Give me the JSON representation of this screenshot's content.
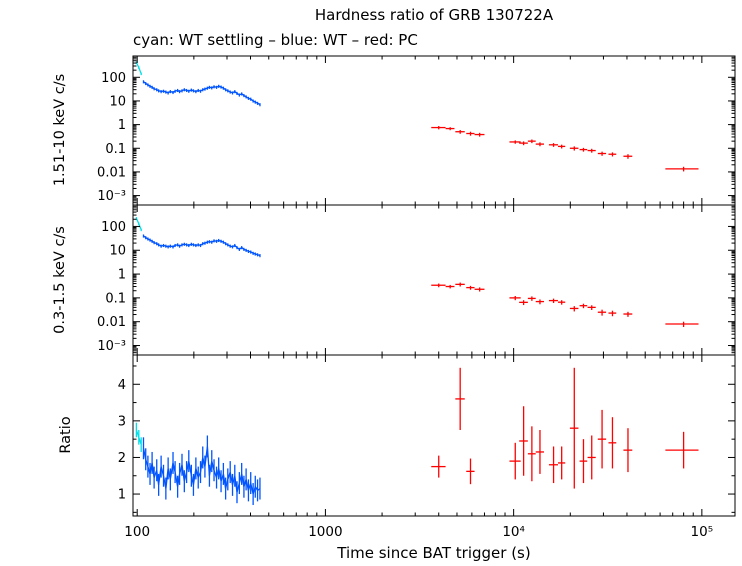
{
  "chart_data": {
    "type": "scatter",
    "title": "Hardness ratio of GRB 130722A",
    "subtitle": "cyan: WT settling – blue: WT – red: PC",
    "xlabel": "Time since BAT trigger (s)",
    "x_scale": "log",
    "x_range": [
      95,
      150000
    ],
    "x_ticks": {
      "values": [
        100,
        1000,
        10000,
        100000
      ],
      "labels": [
        "100",
        "1000",
        "10⁴",
        "10⁵"
      ]
    },
    "colors": {
      "wt_settling": "#00e0e8",
      "wt": "#0055ff",
      "pc": "#ff0000",
      "axis": "#000000"
    },
    "legend": {
      "wt_settling": "WT settling",
      "wt": "WT",
      "pc": "PC"
    },
    "panels": [
      {
        "name": "hard-band",
        "ylabel": "1.51-10 keV c/s",
        "y_scale": "log",
        "y_range": [
          0.0004,
          794
        ],
        "y_ticks": {
          "values": [
            100,
            10,
            1,
            0.1,
            0.01,
            0.001
          ],
          "labels": [
            "100",
            "10",
            "1",
            "0.1",
            "0.01",
            "10⁻³"
          ]
        },
        "series": [
          {
            "name": "wt-settling",
            "color": "wt_settling",
            "style": "line",
            "yerr_frac": 0.12,
            "x": [
              99,
              102,
              105
            ],
            "y": [
              420,
              260,
              140
            ]
          },
          {
            "name": "wt",
            "color": "wt",
            "style": "line",
            "yerr_frac": 0.15,
            "x": [
              108,
              111,
              114,
              117,
              120,
              123,
              127,
              130,
              134,
              138,
              142,
              146,
              150,
              155,
              159,
              164,
              168,
              173,
              178,
              183,
              188,
              194,
              199,
              205,
              211,
              217,
              223,
              229,
              236,
              242,
              249,
              256,
              264,
              271,
              279,
              287,
              295,
              303,
              312,
              321,
              330,
              339,
              349,
              359,
              369,
              379,
              390,
              401,
              413,
              424,
              436,
              449
            ],
            "y": [
              65,
              55,
              48,
              42,
              38,
              33,
              30,
              27,
              25,
              26,
              24,
              22,
              25,
              23,
              26,
              28,
              25,
              27,
              30,
              28,
              26,
              29,
              27,
              25,
              28,
              26,
              30,
              32,
              35,
              38,
              36,
              40,
              38,
              42,
              39,
              35,
              30,
              27,
              24,
              22,
              25,
              21,
              18,
              20,
              17,
              15,
              13,
              12,
              10,
              9,
              8,
              7
            ]
          },
          {
            "name": "pc",
            "color": "pc",
            "style": "cross",
            "points": [
              [
                4000,
                0.75,
                350,
                0.12
              ],
              [
                4600,
                0.68,
                250,
                0.1
              ],
              [
                5200,
                0.5,
                300,
                0.09
              ],
              [
                5900,
                0.42,
                300,
                0.08
              ],
              [
                6600,
                0.38,
                400,
                0.07
              ],
              [
                10200,
                0.185,
                700,
                0.03
              ],
              [
                11300,
                0.165,
                600,
                0.03
              ],
              [
                12500,
                0.2,
                600,
                0.035
              ],
              [
                13800,
                0.15,
                700,
                0.028
              ],
              [
                16300,
                0.14,
                900,
                0.025
              ],
              [
                18000,
                0.12,
                800,
                0.022
              ],
              [
                21000,
                0.1,
                1100,
                0.02
              ],
              [
                23500,
                0.088,
                1100,
                0.016
              ],
              [
                26000,
                0.08,
                1300,
                0.015
              ],
              [
                29500,
                0.06,
                1500,
                0.012
              ],
              [
                33500,
                0.056,
                1600,
                0.011
              ],
              [
                40500,
                0.046,
                2200,
                0.01
              ],
              [
                80000,
                0.0135,
                16000,
                0.003
              ]
            ]
          }
        ]
      },
      {
        "name": "soft-band",
        "ylabel": "0.3-1.5 keV c/s",
        "y_scale": "log",
        "y_range": [
          0.0004,
          794
        ],
        "y_ticks": {
          "values": [
            100,
            10,
            1,
            0.1,
            0.01,
            0.001
          ],
          "labels": [
            "100",
            "10",
            "1",
            "0.1",
            "0.01",
            "10⁻³"
          ]
        },
        "series": [
          {
            "name": "wt-settling",
            "color": "wt_settling",
            "style": "line",
            "yerr_frac": 0.12,
            "x": [
              99,
              102,
              105
            ],
            "y": [
              220,
              130,
              72
            ]
          },
          {
            "name": "wt",
            "color": "wt",
            "style": "line",
            "yerr_frac": 0.15,
            "x": [
              108,
              111,
              114,
              117,
              120,
              123,
              127,
              130,
              134,
              138,
              142,
              146,
              150,
              155,
              159,
              164,
              168,
              173,
              178,
              183,
              188,
              194,
              199,
              205,
              211,
              217,
              223,
              229,
              236,
              242,
              249,
              256,
              264,
              271,
              279,
              287,
              295,
              303,
              312,
              321,
              330,
              339,
              349,
              359,
              369,
              379,
              390,
              401,
              413,
              424,
              436,
              449
            ],
            "y": [
              40,
              34,
              30,
              27,
              24,
              21,
              19,
              17,
              15,
              16,
              15,
              14,
              15,
              14,
              16,
              17,
              15,
              17,
              18,
              17,
              16,
              18,
              17,
              16,
              17,
              16,
              19,
              20,
              22,
              23,
              22,
              25,
              24,
              26,
              24,
              22,
              19,
              17,
              15,
              14,
              16,
              13,
              11,
              13,
              11,
              10,
              9,
              8.5,
              7.5,
              7,
              6.5,
              6
            ]
          },
          {
            "name": "pc",
            "color": "pc",
            "style": "cross",
            "points": [
              [
                4000,
                0.34,
                350,
                0.06
              ],
              [
                4600,
                0.3,
                250,
                0.05
              ],
              [
                5200,
                0.37,
                300,
                0.07
              ],
              [
                5900,
                0.27,
                300,
                0.05
              ],
              [
                6600,
                0.23,
                400,
                0.045
              ],
              [
                10200,
                0.1,
                700,
                0.02
              ],
              [
                11300,
                0.065,
                600,
                0.015
              ],
              [
                12500,
                0.095,
                600,
                0.02
              ],
              [
                13800,
                0.07,
                700,
                0.016
              ],
              [
                16300,
                0.077,
                900,
                0.016
              ],
              [
                18000,
                0.066,
                800,
                0.014
              ],
              [
                21000,
                0.036,
                1100,
                0.009
              ],
              [
                23500,
                0.047,
                1100,
                0.01
              ],
              [
                26000,
                0.04,
                1300,
                0.009
              ],
              [
                29500,
                0.025,
                1500,
                0.007
              ],
              [
                33500,
                0.023,
                1600,
                0.006
              ],
              [
                40500,
                0.021,
                2200,
                0.005
              ],
              [
                80000,
                0.008,
                16000,
                0.002
              ]
            ]
          }
        ]
      },
      {
        "name": "ratio",
        "ylabel": "Ratio",
        "y_scale": "linear",
        "y_range": [
          0.4,
          4.8
        ],
        "y_ticks": {
          "values": [
            1,
            2,
            3,
            4
          ],
          "labels": [
            "1",
            "2",
            "3",
            "4"
          ]
        },
        "series": [
          {
            "name": "wt-settling",
            "color": "wt_settling",
            "style": "line",
            "yerr_abs": 0.2,
            "x": [
              99,
              102,
              105
            ],
            "y": [
              2.75,
              2.55,
              2.35
            ]
          },
          {
            "name": "wt",
            "color": "wt",
            "style": "line",
            "yerr_abs": 0.3,
            "x": [
              108,
              111,
              114,
              117,
              120,
              123,
              127,
              130,
              134,
              138,
              142,
              146,
              150,
              155,
              159,
              164,
              168,
              173,
              178,
              183,
              188,
              194,
              199,
              205,
              211,
              217,
              223,
              229,
              236,
              242,
              249,
              256,
              264,
              271,
              279,
              287,
              295,
              303,
              312,
              321,
              330,
              339,
              349,
              359,
              369,
              379,
              390,
              401,
              413,
              424,
              436,
              449
            ],
            "y": [
              2.25,
              1.95,
              1.75,
              1.55,
              1.85,
              1.45,
              1.65,
              1.25,
              1.75,
              1.5,
              1.15,
              1.7,
              1.4,
              1.85,
              1.6,
              1.2,
              1.55,
              1.8,
              1.35,
              1.6,
              1.9,
              1.5,
              1.25,
              1.7,
              1.45,
              1.6,
              2.0,
              1.75,
              2.3,
              1.5,
              1.9,
              1.65,
              1.45,
              1.7,
              1.35,
              1.55,
              1.15,
              1.4,
              1.6,
              1.25,
              1.5,
              1.05,
              1.3,
              1.55,
              1.2,
              1.4,
              1.1,
              1.3,
              1.0,
              1.2,
              1.1,
              1.15
            ]
          },
          {
            "name": "pc",
            "color": "pc",
            "style": "cross",
            "points": [
              [
                4000,
                1.75,
                350,
                0.3
              ],
              [
                5200,
                3.6,
                300,
                0.85
              ],
              [
                5900,
                1.62,
                300,
                0.35
              ],
              [
                10200,
                1.9,
                700,
                0.5
              ],
              [
                11300,
                2.45,
                600,
                0.95
              ],
              [
                12500,
                2.1,
                600,
                0.75
              ],
              [
                13800,
                2.15,
                700,
                0.6
              ],
              [
                16300,
                1.8,
                900,
                0.5
              ],
              [
                18000,
                1.85,
                800,
                0.45
              ],
              [
                21000,
                2.8,
                1100,
                1.65
              ],
              [
                23500,
                1.9,
                1100,
                0.6
              ],
              [
                26000,
                2.0,
                1300,
                0.6
              ],
              [
                29500,
                2.5,
                1500,
                0.8
              ],
              [
                33500,
                2.4,
                1600,
                0.7
              ],
              [
                40500,
                2.2,
                2200,
                0.6
              ],
              [
                80000,
                2.2,
                16000,
                0.5
              ]
            ]
          }
        ]
      }
    ]
  }
}
